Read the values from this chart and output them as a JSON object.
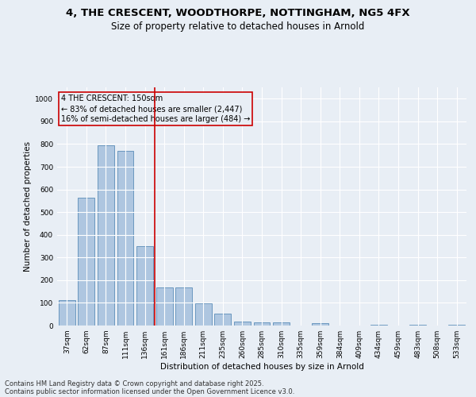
{
  "title_line1": "4, THE CRESCENT, WOODTHORPE, NOTTINGHAM, NG5 4FX",
  "title_line2": "Size of property relative to detached houses in Arnold",
  "xlabel": "Distribution of detached houses by size in Arnold",
  "ylabel": "Number of detached properties",
  "categories": [
    "37sqm",
    "62sqm",
    "87sqm",
    "111sqm",
    "136sqm",
    "161sqm",
    "186sqm",
    "211sqm",
    "235sqm",
    "260sqm",
    "285sqm",
    "310sqm",
    "335sqm",
    "359sqm",
    "384sqm",
    "409sqm",
    "434sqm",
    "459sqm",
    "483sqm",
    "508sqm",
    "533sqm"
  ],
  "values": [
    113,
    563,
    793,
    770,
    350,
    168,
    168,
    98,
    52,
    18,
    13,
    13,
    0,
    10,
    0,
    0,
    5,
    0,
    5,
    0,
    5
  ],
  "bar_color": "#aec6e0",
  "bar_edge_color": "#5b8db8",
  "vline_x": 4.5,
  "vline_color": "#cc0000",
  "annotation_text": "4 THE CRESCENT: 150sqm\n← 83% of detached houses are smaller (2,447)\n16% of semi-detached houses are larger (484) →",
  "annotation_box_color": "#cc0000",
  "footer_line1": "Contains HM Land Registry data © Crown copyright and database right 2025.",
  "footer_line2": "Contains public sector information licensed under the Open Government Licence v3.0.",
  "ylim": [
    0,
    1050
  ],
  "yticks": [
    0,
    100,
    200,
    300,
    400,
    500,
    600,
    700,
    800,
    900,
    1000
  ],
  "background_color": "#e8eef5",
  "grid_color": "#ffffff",
  "title_fontsize": 9.5,
  "subtitle_fontsize": 8.5,
  "axis_label_fontsize": 7.5,
  "tick_fontsize": 6.5,
  "annotation_fontsize": 7,
  "footer_fontsize": 6
}
